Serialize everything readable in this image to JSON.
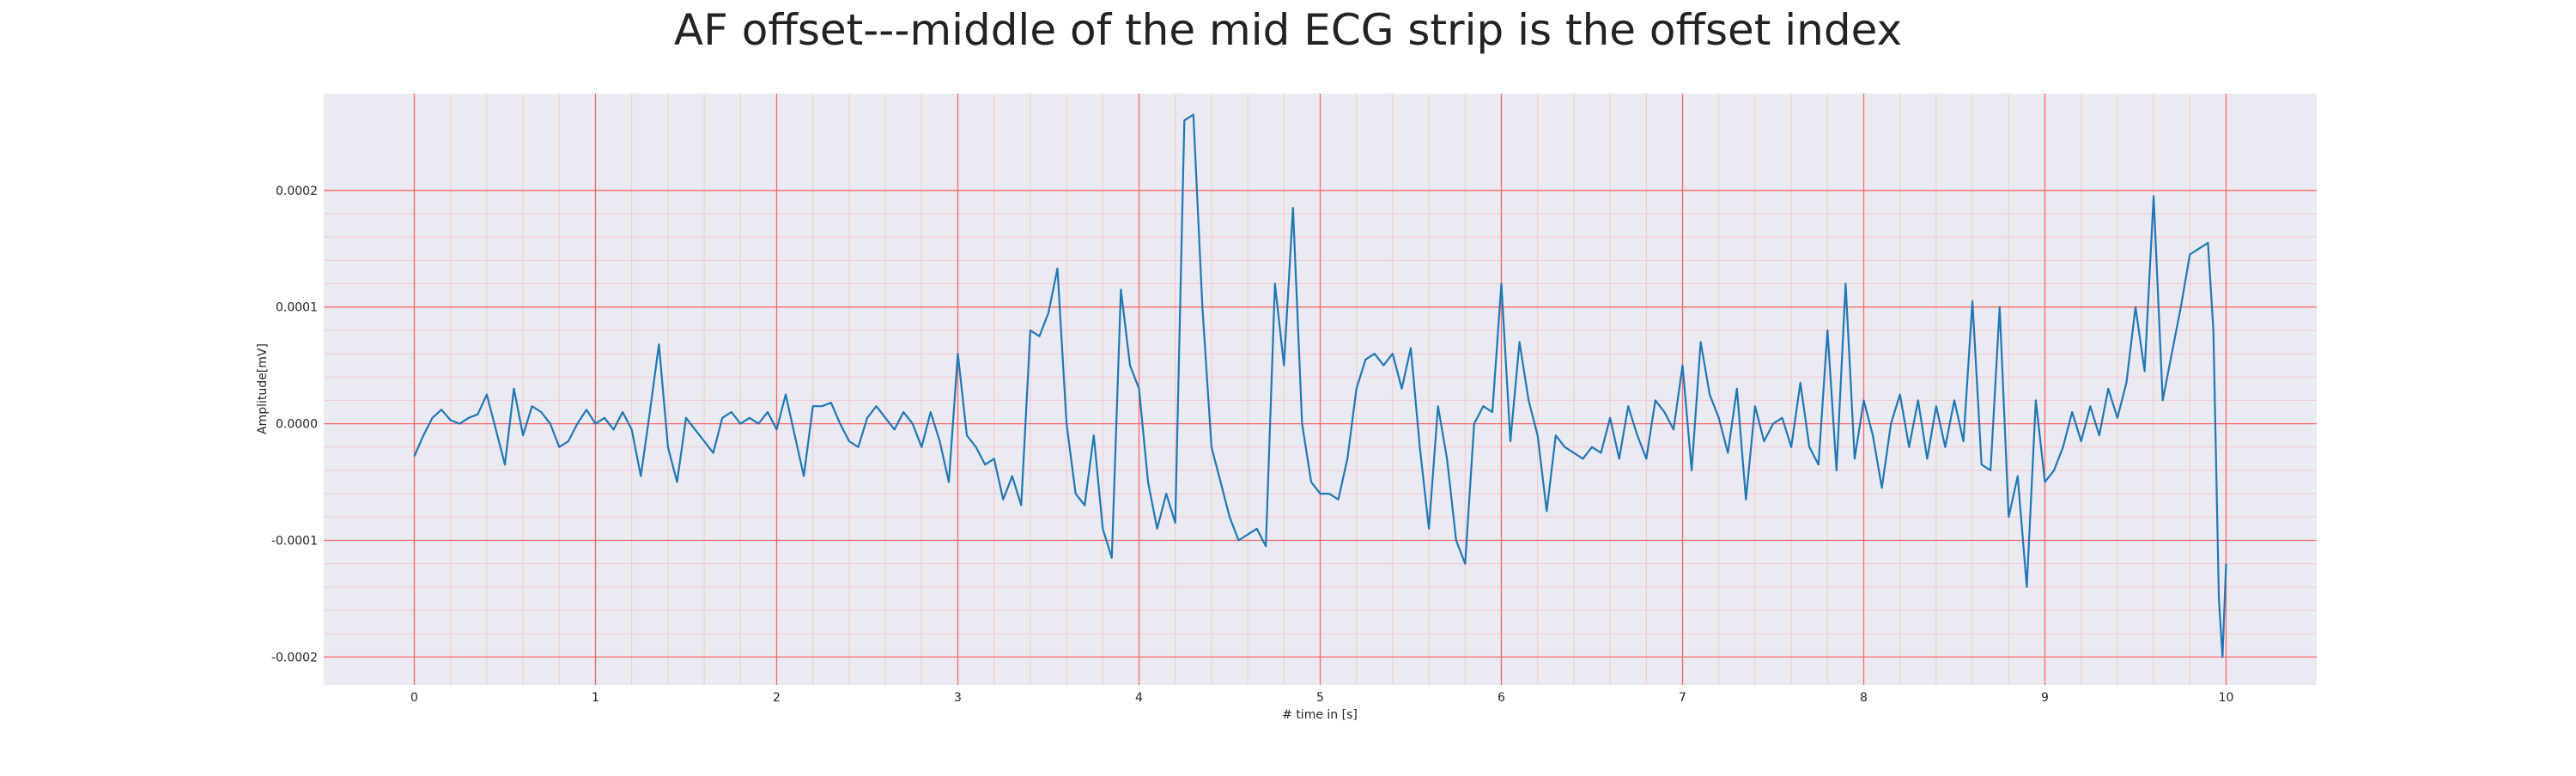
{
  "chart_data": {
    "type": "line",
    "title": "AF offset---middle of the mid ECG strip is the offset index",
    "xlabel": "# time in [s]",
    "ylabel": "Amplitude[mV]",
    "x": [
      0,
      0.05,
      0.1,
      0.15,
      0.2,
      0.25,
      0.3,
      0.35,
      0.4,
      0.45,
      0.5,
      0.55,
      0.6,
      0.65,
      0.7,
      0.75,
      0.8,
      0.85,
      0.9,
      0.95,
      1.0,
      1.05,
      1.1,
      1.15,
      1.2,
      1.25,
      1.3,
      1.35,
      1.4,
      1.45,
      1.5,
      1.55,
      1.6,
      1.65,
      1.7,
      1.75,
      1.8,
      1.85,
      1.9,
      1.95,
      2.0,
      2.05,
      2.1,
      2.15,
      2.2,
      2.25,
      2.3,
      2.35,
      2.4,
      2.45,
      2.5,
      2.55,
      2.6,
      2.65,
      2.7,
      2.75,
      2.8,
      2.85,
      2.9,
      2.95,
      3.0,
      3.05,
      3.1,
      3.15,
      3.2,
      3.25,
      3.3,
      3.35,
      3.4,
      3.45,
      3.5,
      3.55,
      3.6,
      3.65,
      3.7,
      3.75,
      3.8,
      3.85,
      3.9,
      3.95,
      4.0,
      4.05,
      4.1,
      4.15,
      4.2,
      4.25,
      4.3,
      4.35,
      4.4,
      4.45,
      4.5,
      4.55,
      4.6,
      4.65,
      4.7,
      4.75,
      4.8,
      4.85,
      4.9,
      4.95,
      5.0,
      5.05,
      5.1,
      5.15,
      5.2,
      5.25,
      5.3,
      5.35,
      5.4,
      5.45,
      5.5,
      5.55,
      5.6,
      5.65,
      5.7,
      5.75,
      5.8,
      5.85,
      5.9,
      5.95,
      6.0,
      6.05,
      6.1,
      6.15,
      6.2,
      6.25,
      6.3,
      6.35,
      6.4,
      6.45,
      6.5,
      6.55,
      6.6,
      6.65,
      6.7,
      6.75,
      6.8,
      6.85,
      6.9,
      6.95,
      7.0,
      7.05,
      7.1,
      7.15,
      7.2,
      7.25,
      7.3,
      7.35,
      7.4,
      7.45,
      7.5,
      7.55,
      7.6,
      7.65,
      7.7,
      7.75,
      7.8,
      7.85,
      7.9,
      7.95,
      8.0,
      8.05,
      8.1,
      8.15,
      8.2,
      8.25,
      8.3,
      8.35,
      8.4,
      8.45,
      8.5,
      8.55,
      8.6,
      8.65,
      8.7,
      8.75,
      8.8,
      8.85,
      8.9,
      8.95,
      9.0,
      9.05,
      9.1,
      9.15,
      9.2,
      9.25,
      9.3,
      9.35,
      9.4,
      9.45,
      9.5,
      9.55,
      9.6,
      9.65,
      9.7,
      9.75,
      9.8,
      9.85,
      9.9,
      9.93,
      9.96,
      9.98,
      10.0
    ],
    "series": [
      {
        "name": "ECG",
        "color": "#1f77b4",
        "values": [
          -2.8e-05,
          -1e-05,
          5e-06,
          1.2e-05,
          3e-06,
          0,
          5e-06,
          8e-06,
          2.5e-05,
          -5e-06,
          -3.5e-05,
          3e-05,
          -1e-05,
          1.5e-05,
          1e-05,
          0,
          -2e-05,
          -1.5e-05,
          0,
          1.2e-05,
          0,
          5e-06,
          -5e-06,
          1e-05,
          -5e-06,
          -4.5e-05,
          1e-05,
          6.8e-05,
          -2e-05,
          -5e-05,
          5e-06,
          -5e-06,
          -1.5e-05,
          -2.5e-05,
          5e-06,
          1e-05,
          0,
          5e-06,
          0,
          1e-05,
          -5e-06,
          2.5e-05,
          -1e-05,
          -4.5e-05,
          1.5e-05,
          1.5e-05,
          1.8e-05,
          0,
          -1.5e-05,
          -2e-05,
          5e-06,
          1.5e-05,
          5e-06,
          -5e-06,
          1e-05,
          0,
          -2e-05,
          1e-05,
          -1.5e-05,
          -5e-05,
          6e-05,
          -1e-05,
          -2e-05,
          -3.5e-05,
          -3e-05,
          -6.5e-05,
          -4.5e-05,
          -7e-05,
          8e-05,
          7.5e-05,
          9.5e-05,
          0.000133,
          0,
          -6e-05,
          -7e-05,
          -1e-05,
          -9e-05,
          -0.000115,
          0.000115,
          5e-05,
          3e-05,
          -5e-05,
          -9e-05,
          -6e-05,
          -8.5e-05,
          0.00026,
          0.000265,
          0.0001,
          -2e-05,
          -5e-05,
          -8e-05,
          -0.0001,
          -9.5e-05,
          -9e-05,
          -0.000105,
          0.00012,
          5e-05,
          0.000185,
          0,
          -5e-05,
          -6e-05,
          -6e-05,
          -6.5e-05,
          -3e-05,
          3e-05,
          5.5e-05,
          6e-05,
          5e-05,
          6e-05,
          3e-05,
          6.5e-05,
          -2e-05,
          -9e-05,
          1.5e-05,
          -3e-05,
          -0.0001,
          -0.00012,
          0,
          1.5e-05,
          1e-05,
          0.00012,
          -1.5e-05,
          7e-05,
          2e-05,
          -1e-05,
          -7.5e-05,
          -1e-05,
          -2e-05,
          -2.5e-05,
          -3e-05,
          -2e-05,
          -2.5e-05,
          5e-06,
          -3e-05,
          1.5e-05,
          -1e-05,
          -3e-05,
          2e-05,
          1e-05,
          -5e-06,
          5e-05,
          -4e-05,
          7e-05,
          2.5e-05,
          5e-06,
          -2.5e-05,
          3e-05,
          -6.5e-05,
          1.5e-05,
          -1.5e-05,
          0,
          5e-06,
          -2e-05,
          3.5e-05,
          -2e-05,
          -3.5e-05,
          8e-05,
          -4e-05,
          0.00012,
          -3e-05,
          2e-05,
          -1e-05,
          -5.5e-05,
          0,
          2.5e-05,
          -2e-05,
          2e-05,
          -3e-05,
          1.5e-05,
          -2e-05,
          2e-05,
          -1.5e-05,
          0.000105,
          -3.5e-05,
          -4e-05,
          0.0001,
          -8e-05,
          -4.5e-05,
          -0.00014,
          2e-05,
          -5e-05,
          -4e-05,
          -2e-05,
          1e-05,
          -1.5e-05,
          1.5e-05,
          -1e-05,
          3e-05,
          5e-06,
          3.5e-05,
          0.0001,
          4.5e-05,
          0.000195,
          2e-05,
          6e-05,
          0.0001,
          0.000145,
          0.00015,
          0.000155,
          8e-05,
          -0.00015,
          -0.0002,
          -0.00012
        ]
      }
    ],
    "xlim": [
      -0.5,
      10.5
    ],
    "xticks": [
      0,
      1,
      2,
      3,
      4,
      5,
      6,
      7,
      8,
      9,
      10
    ],
    "ylim": [
      -0.000224,
      0.000283
    ],
    "yticks": [
      -0.0002,
      -0.0001,
      {
        "value": 0,
        "label": "0.0000"
      },
      0.0001,
      0.0002
    ],
    "grid": true,
    "grid_color": "#ff6666",
    "minor_grid_color": "#f7c6d0",
    "minor_divisions": 5,
    "background": "#eaeaf2"
  }
}
